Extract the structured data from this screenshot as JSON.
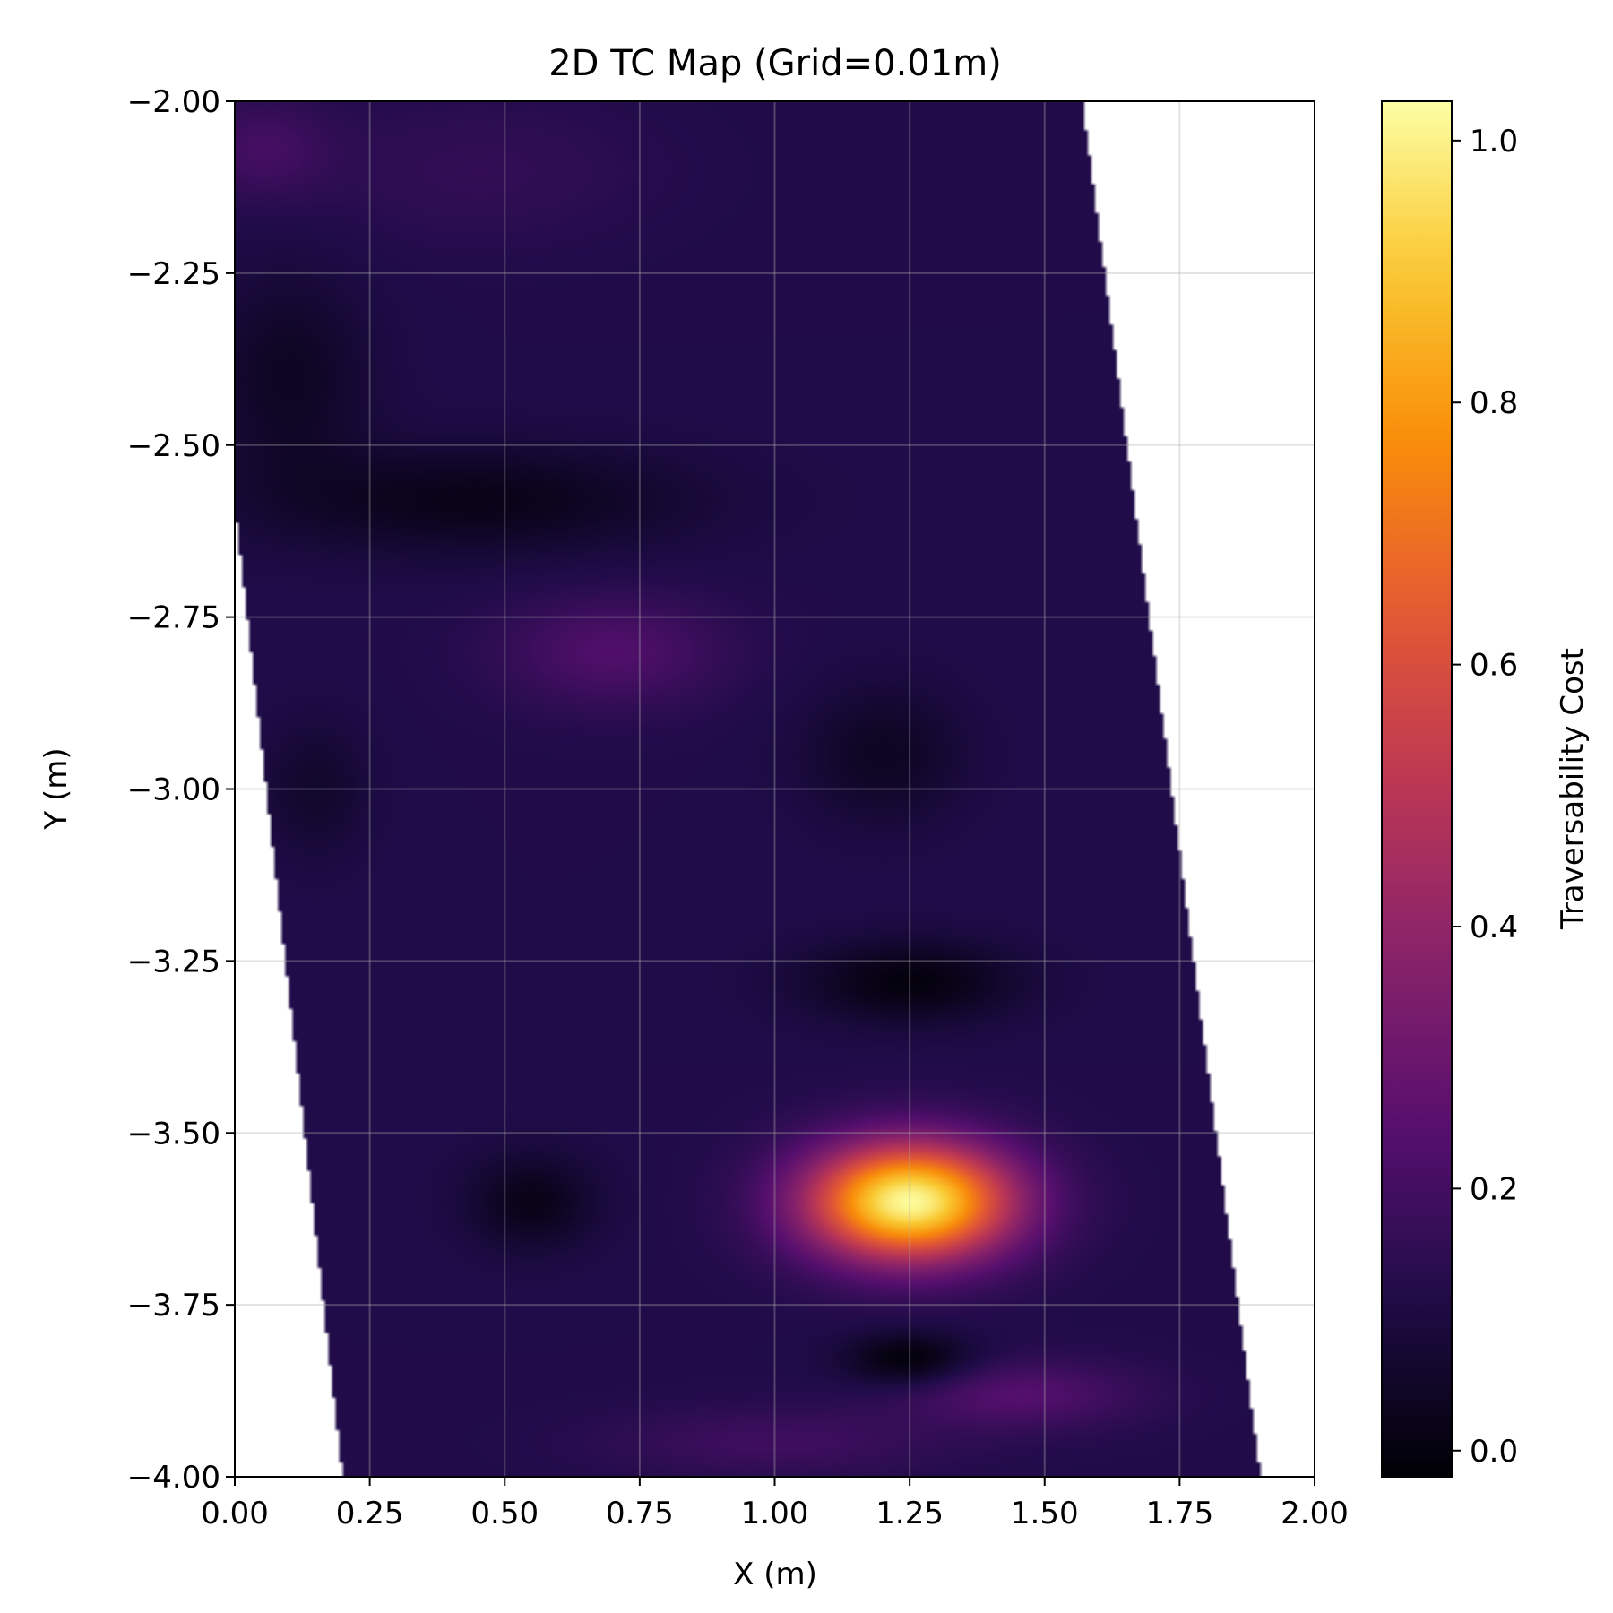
{
  "chart_data": {
    "type": "heatmap",
    "title": "2D TC Map (Grid=0.01m)",
    "xlabel": "X (m)",
    "ylabel": "Y (m)",
    "colorbar_label": "Traversability Cost",
    "colormap": "inferno",
    "xlim": [
      0.0,
      2.0
    ],
    "ylim": [
      -4.0,
      -2.0
    ],
    "clim": [
      -0.02,
      1.03
    ],
    "grid": true,
    "x_ticks": [
      "0.00",
      "0.25",
      "0.50",
      "0.75",
      "1.00",
      "1.25",
      "1.50",
      "1.75",
      "2.00"
    ],
    "y_ticks": [
      "−2.00",
      "−2.25",
      "−2.50",
      "−2.75",
      "−3.00",
      "−3.25",
      "−3.50",
      "−3.75",
      "−4.00"
    ],
    "colorbar_ticks": [
      "0.0",
      "0.2",
      "0.4",
      "0.6",
      "0.8",
      "1.0"
    ],
    "valid_region": {
      "left_edge": [
        [
          0.0,
          -2.0
        ],
        [
          0.0,
          -2.59
        ],
        [
          0.2,
          -4.0
        ]
      ],
      "right_edge": [
        [
          1.57,
          -2.0
        ],
        [
          1.9,
          -4.0
        ]
      ]
    },
    "base_cost": 0.12,
    "features": [
      {
        "x": 1.25,
        "y": -3.6,
        "sx": 0.19,
        "sy": 0.085,
        "amp": 0.9,
        "label": "peak"
      },
      {
        "x": 0.7,
        "y": -2.8,
        "sx": 0.2,
        "sy": 0.08,
        "amp": 0.11
      },
      {
        "x": 0.05,
        "y": -2.07,
        "sx": 0.12,
        "sy": 0.07,
        "amp": 0.08
      },
      {
        "x": 1.45,
        "y": -3.88,
        "sx": 0.22,
        "sy": 0.05,
        "amp": 0.12
      },
      {
        "x": 1.0,
        "y": -3.95,
        "sx": 0.3,
        "sy": 0.05,
        "amp": 0.07
      },
      {
        "x": 0.45,
        "y": -2.1,
        "sx": 0.3,
        "sy": 0.1,
        "amp": 0.04
      },
      {
        "x": 0.45,
        "y": -2.58,
        "sx": 0.4,
        "sy": 0.08,
        "amp": -0.1
      },
      {
        "x": 0.1,
        "y": -2.4,
        "sx": 0.15,
        "sy": 0.15,
        "amp": -0.08
      },
      {
        "x": 1.25,
        "y": -3.28,
        "sx": 0.2,
        "sy": 0.06,
        "amp": -0.12
      },
      {
        "x": 1.25,
        "y": -3.83,
        "sx": 0.12,
        "sy": 0.04,
        "amp": -0.14
      },
      {
        "x": 0.55,
        "y": -3.6,
        "sx": 0.12,
        "sy": 0.07,
        "amp": -0.1
      },
      {
        "x": 1.2,
        "y": -2.95,
        "sx": 0.15,
        "sy": 0.1,
        "amp": -0.08
      },
      {
        "x": 0.15,
        "y": -3.0,
        "sx": 0.1,
        "sy": 0.1,
        "amp": -0.06
      }
    ]
  }
}
